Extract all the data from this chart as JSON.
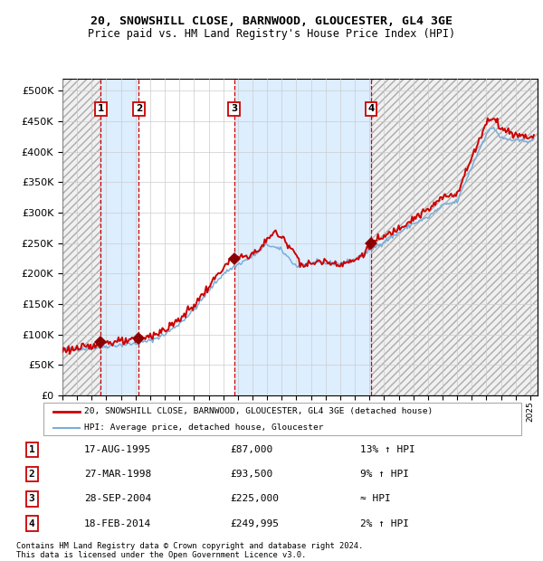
{
  "title1": "20, SNOWSHILL CLOSE, BARNWOOD, GLOUCESTER, GL4 3GE",
  "title2": "Price paid vs. HM Land Registry's House Price Index (HPI)",
  "xlim": [
    1993.0,
    2025.5
  ],
  "ylim": [
    0,
    520000
  ],
  "yticks": [
    0,
    50000,
    100000,
    150000,
    200000,
    250000,
    300000,
    350000,
    400000,
    450000,
    500000
  ],
  "sale_dates": [
    1995.62,
    1998.23,
    2004.74,
    2014.12
  ],
  "sale_prices": [
    87000,
    93500,
    225000,
    249995
  ],
  "sale_labels": [
    "1",
    "2",
    "3",
    "4"
  ],
  "vline_dates": [
    1995.62,
    1998.23,
    2004.74,
    2014.12
  ],
  "bg_shade_ranges": [
    [
      1995.62,
      1998.23
    ],
    [
      2004.74,
      2014.12
    ]
  ],
  "legend_line1": "20, SNOWSHILL CLOSE, BARNWOOD, GLOUCESTER, GL4 3GE (detached house)",
  "legend_line2": "HPI: Average price, detached house, Gloucester",
  "table_data": [
    [
      "1",
      "17-AUG-1995",
      "£87,000",
      "13% ↑ HPI"
    ],
    [
      "2",
      "27-MAR-1998",
      "£93,500",
      "9% ↑ HPI"
    ],
    [
      "3",
      "28-SEP-2004",
      "£225,000",
      "≈ HPI"
    ],
    [
      "4",
      "18-FEB-2014",
      "£249,995",
      "2% ↑ HPI"
    ]
  ],
  "footnote1": "Contains HM Land Registry data © Crown copyright and database right 2024.",
  "footnote2": "This data is licensed under the Open Government Licence v3.0.",
  "price_line_color": "#cc0000",
  "hpi_line_color": "#7aaedb",
  "bg_shade_color": "#ddeeff",
  "grid_color": "#cccccc",
  "vline_color": "#cc0000",
  "marker_color": "#8b0000",
  "hatch_facecolor": "#f0f0f0"
}
